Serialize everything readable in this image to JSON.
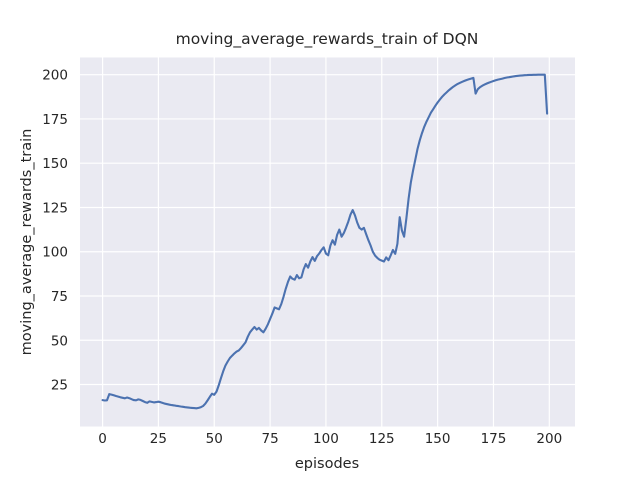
{
  "chart_data": {
    "type": "line",
    "title": "moving_average_rewards_train of DQN",
    "xlabel": "episodes",
    "ylabel": "moving_average_rewards_train",
    "x_ticks": [
      0,
      25,
      50,
      75,
      100,
      125,
      150,
      175,
      200
    ],
    "y_ticks": [
      25,
      50,
      75,
      100,
      125,
      150,
      175,
      200
    ],
    "xlim": [
      -10.1,
      211.5
    ],
    "ylim": [
      1.3,
      209.7
    ],
    "grid": true,
    "legend": "none",
    "theme": {
      "figure_bg": "#ffffff",
      "axes_bg": "#eaeaf2",
      "grid_color": "#ffffff",
      "text_color": "#262626",
      "line_color": "#4c72b0"
    },
    "series": [
      {
        "color": "#4c72b0",
        "x_start": 0,
        "x_step": 1,
        "values": [
          16.2,
          16.0,
          16.1,
          19.6,
          19.3,
          18.9,
          18.5,
          18.2,
          17.8,
          17.5,
          17.2,
          17.7,
          17.3,
          16.7,
          16.2,
          16.1,
          16.6,
          16.3,
          15.7,
          15.1,
          14.7,
          15.5,
          15.2,
          14.9,
          15.1,
          15.3,
          15.0,
          14.6,
          14.2,
          13.9,
          13.6,
          13.4,
          13.2,
          13.0,
          12.8,
          12.6,
          12.4,
          12.2,
          12.1,
          11.9,
          11.8,
          11.7,
          11.6,
          11.8,
          12.2,
          12.9,
          14.2,
          16.0,
          18.0,
          19.8,
          19.2,
          21.0,
          24.5,
          28.5,
          32.5,
          35.7,
          38.0,
          40.0,
          41.3,
          42.6,
          43.6,
          44.3,
          45.7,
          47.2,
          48.8,
          52.0,
          54.5,
          56.0,
          57.5,
          56.0,
          57.0,
          55.5,
          54.5,
          56.5,
          59.0,
          62.0,
          65.0,
          68.5,
          68.0,
          67.5,
          70.5,
          74.5,
          79.0,
          83.0,
          86.0,
          84.8,
          84.2,
          86.8,
          85.0,
          85.5,
          90.0,
          93.0,
          91.0,
          94.5,
          97.0,
          94.8,
          97.5,
          99.0,
          101.0,
          102.5,
          99.0,
          98.0,
          103.5,
          106.5,
          104.0,
          109.5,
          112.5,
          108.5,
          110.5,
          113.5,
          117.0,
          121.0,
          123.5,
          120.5,
          116.5,
          113.5,
          112.5,
          113.5,
          110.0,
          106.5,
          103.5,
          100.0,
          97.8,
          96.5,
          95.5,
          95.0,
          94.5,
          96.8,
          95.2,
          98.0,
          101.0,
          98.8,
          104.5,
          119.5,
          112.0,
          108.5,
          119.0,
          130.0,
          139.0,
          146.0,
          152.0,
          158.0,
          163.0,
          167.0,
          170.5,
          173.5,
          176.0,
          178.5,
          180.5,
          182.5,
          184.3,
          186.0,
          187.5,
          188.8,
          190.0,
          191.2,
          192.2,
          193.2,
          194.0,
          194.8,
          195.4,
          196.0,
          196.5,
          197.0,
          197.4,
          197.8,
          198.2,
          189.3,
          191.8,
          193.0,
          193.8,
          194.4,
          195.0,
          195.5,
          196.0,
          196.4,
          196.8,
          197.2,
          197.5,
          197.8,
          198.1,
          198.4,
          198.6,
          198.8,
          199.0,
          199.2,
          199.35,
          199.5,
          199.6,
          199.7,
          199.78,
          199.85,
          199.9,
          199.93,
          199.95,
          199.97,
          199.98,
          199.99,
          200.0,
          178.0
        ]
      }
    ]
  }
}
